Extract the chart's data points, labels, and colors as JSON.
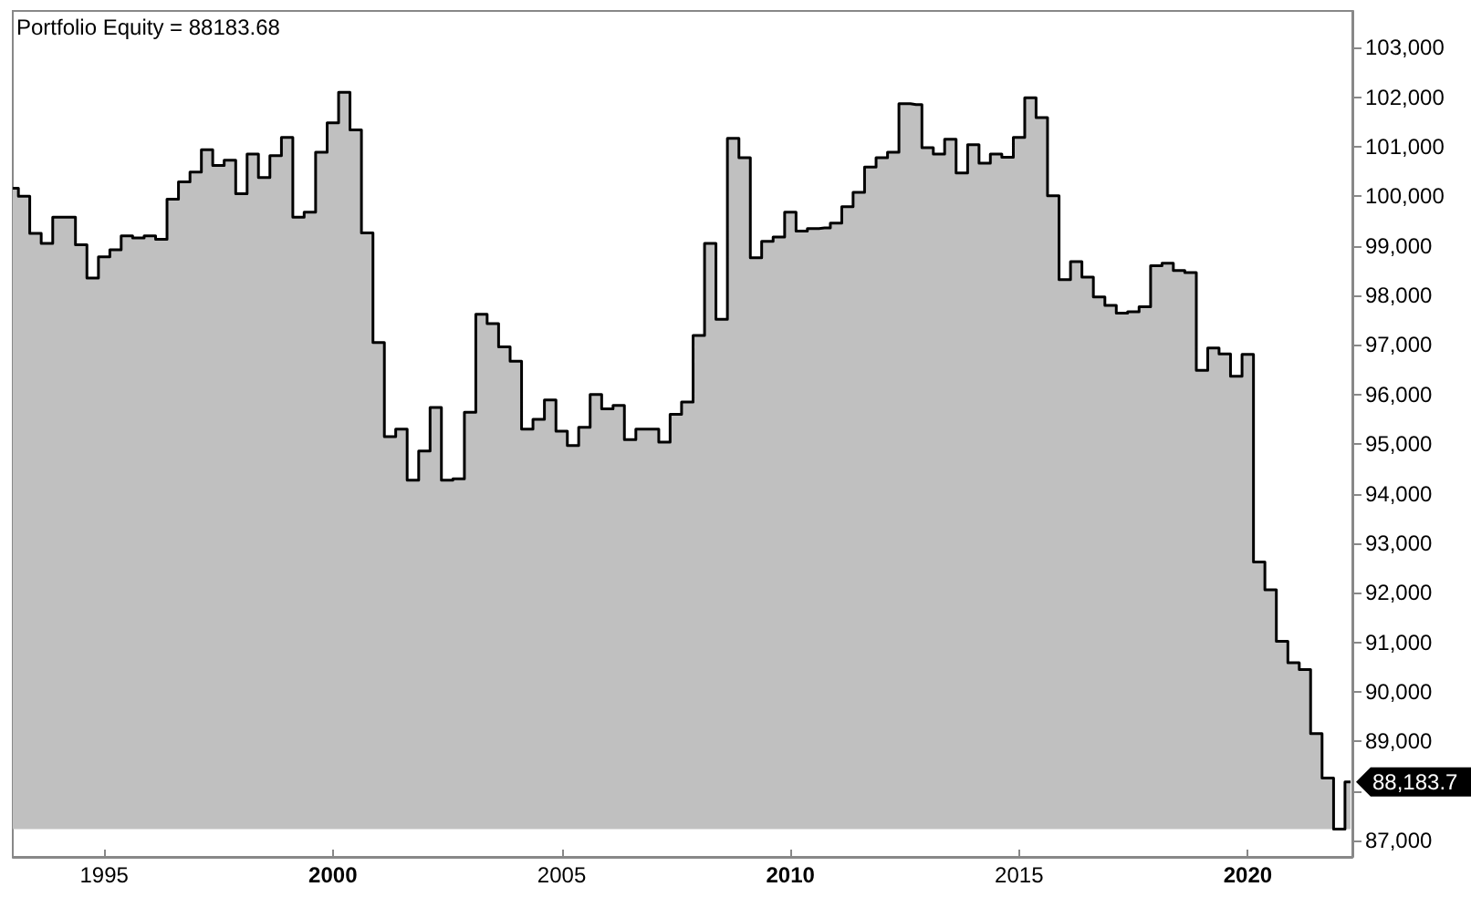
{
  "chart_data": {
    "type": "area",
    "title": "Portfolio Equity = 88183.68",
    "x": [
      "1993-01",
      "1993-04",
      "1993-07",
      "1993-10",
      "1994-01",
      "1994-04",
      "1994-07",
      "1994-10",
      "1995-01",
      "1995-04",
      "1995-07",
      "1995-10",
      "1996-01",
      "1996-04",
      "1996-07",
      "1996-10",
      "1997-01",
      "1997-04",
      "1997-07",
      "1997-10",
      "1998-01",
      "1998-04",
      "1998-07",
      "1998-10",
      "1999-01",
      "1999-04",
      "1999-07",
      "1999-10",
      "2000-01",
      "2000-04",
      "2000-07",
      "2000-10",
      "2001-01",
      "2001-04",
      "2001-07",
      "2001-10",
      "2002-01",
      "2002-04",
      "2002-07",
      "2002-10",
      "2003-01",
      "2003-04",
      "2003-07",
      "2003-10",
      "2004-01",
      "2004-04",
      "2004-07",
      "2004-10",
      "2005-01",
      "2005-04",
      "2005-07",
      "2005-10",
      "2006-01",
      "2006-04",
      "2006-07",
      "2006-10",
      "2007-01",
      "2007-04",
      "2007-07",
      "2007-10",
      "2008-01",
      "2008-04",
      "2008-07",
      "2008-10",
      "2009-01",
      "2009-04",
      "2009-07",
      "2009-10",
      "2010-01",
      "2010-04",
      "2010-07",
      "2010-10",
      "2011-01",
      "2011-04",
      "2011-07",
      "2011-10",
      "2012-01",
      "2012-04",
      "2012-07",
      "2012-10",
      "2013-01",
      "2013-04",
      "2013-07",
      "2013-10",
      "2014-01",
      "2014-04",
      "2014-07",
      "2014-10",
      "2015-01",
      "2015-04",
      "2015-07",
      "2015-10",
      "2016-01",
      "2016-04",
      "2016-07",
      "2016-10",
      "2017-01",
      "2017-04",
      "2017-07",
      "2017-10",
      "2018-01",
      "2018-04",
      "2018-07",
      "2018-10",
      "2019-01",
      "2019-04",
      "2019-07",
      "2019-10",
      "2020-01",
      "2020-04",
      "2020-07",
      "2020-10",
      "2021-01",
      "2021-04",
      "2021-07",
      "2021-10",
      "2022-01",
      "2022-04"
    ],
    "values": [
      100160,
      100000,
      99250,
      99050,
      99580,
      99580,
      99020,
      98350,
      98780,
      98920,
      99200,
      99160,
      99200,
      99130,
      99940,
      100290,
      100490,
      100940,
      100620,
      100730,
      100050,
      100850,
      100380,
      100820,
      101190,
      99580,
      99680,
      100890,
      101480,
      102100,
      101340,
      99260,
      97050,
      95150,
      95300,
      94270,
      94860,
      95740,
      94270,
      94300,
      95640,
      97620,
      97430,
      96960,
      96670,
      95300,
      95500,
      95890,
      95260,
      94970,
      95340,
      96000,
      95710,
      95780,
      95090,
      95300,
      95300,
      95040,
      95600,
      95850,
      97190,
      99050,
      97520,
      101170,
      100780,
      98760,
      99090,
      99180,
      99680,
      99300,
      99350,
      99360,
      99460,
      99790,
      100080,
      100590,
      100780,
      100890,
      101870,
      101850,
      100980,
      100850,
      101150,
      100470,
      101040,
      100670,
      100850,
      100790,
      101190,
      101990,
      101590,
      100010,
      98320,
      98680,
      98370,
      97970,
      97800,
      97640,
      97670,
      97770,
      98600,
      98650,
      98500,
      98460,
      96490,
      96940,
      96820,
      96370,
      96810,
      92620,
      92060,
      91020,
      90590,
      90450,
      89160,
      88260,
      87230,
      88183.68
    ],
    "color": "#c0c0c0",
    "annotations": [
      {
        "text": "88,183.7",
        "x": "2022-04",
        "y": 88183.68
      }
    ],
    "xlim": [
      "1993-01",
      "2022-04-15"
    ],
    "xticks": [
      "1995",
      "2000",
      "2005",
      "2010",
      "2015",
      "2020"
    ],
    "ylim": [
      86670,
      103740
    ],
    "yticks": [
      {
        "value": 87000,
        "label": "87,000"
      },
      {
        "value": 88000,
        "label": null
      },
      {
        "value": 89000,
        "label": "89,000"
      },
      {
        "value": 90000,
        "label": "90,000"
      },
      {
        "value": 91000,
        "label": "91,000"
      },
      {
        "value": 92000,
        "label": "92,000"
      },
      {
        "value": 93000,
        "label": "93,000"
      },
      {
        "value": 94000,
        "label": "94,000"
      },
      {
        "value": 95000,
        "label": "95,000"
      },
      {
        "value": 96000,
        "label": "96,000"
      },
      {
        "value": 97000,
        "label": "97,000"
      },
      {
        "value": 98000,
        "label": "98,000"
      },
      {
        "value": 99000,
        "label": "99,000"
      },
      {
        "value": 100000,
        "label": "100,000"
      },
      {
        "value": 101000,
        "label": "101,000"
      },
      {
        "value": 102000,
        "label": "102,000"
      },
      {
        "value": 103000,
        "label": "103,000"
      }
    ],
    "grid": false
  }
}
